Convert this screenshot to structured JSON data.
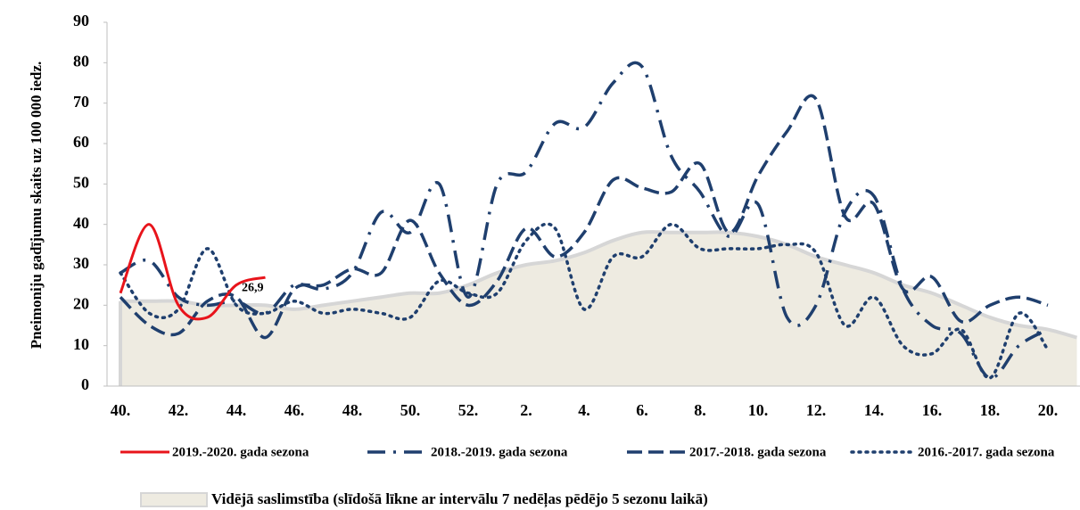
{
  "chart_data": {
    "type": "line",
    "y_label": "Pneimoniju gadījumu skaits uz 100 000 iedz.",
    "categories": [
      "40.",
      null,
      "42.",
      null,
      "44.",
      null,
      "46.",
      null,
      "48.",
      null,
      "50.",
      null,
      "52.",
      null,
      "2.",
      null,
      "4.",
      null,
      "6.",
      null,
      "8.",
      null,
      "10.",
      null,
      "12.",
      null,
      "14.",
      null,
      "16.",
      null,
      "18.",
      null,
      "20.",
      null
    ],
    "ylim": [
      0,
      90
    ],
    "yticks": [
      0,
      10,
      20,
      30,
      40,
      50,
      60,
      70,
      80,
      90
    ],
    "area": {
      "name": "Vidējā saslimstība (slīdošā līkne ar intervālu 7 nedēļas pēdējo 5 sezonu laikā)",
      "color": "#eeebe1",
      "edge": "#d6d6d6",
      "values": [
        21,
        21,
        21,
        20,
        20,
        20,
        19,
        20,
        21,
        22,
        23,
        23,
        25,
        28,
        30,
        31,
        33,
        36,
        38,
        38,
        38,
        38,
        37,
        35,
        32,
        30,
        28,
        25,
        23,
        20,
        17,
        15,
        14,
        12
      ]
    },
    "series": [
      {
        "name": "2019.-2020. gada sezona",
        "color": "#e8141b",
        "style": "solid",
        "values": [
          23,
          40,
          20,
          17,
          25,
          26.9,
          null,
          null,
          null,
          null,
          null,
          null,
          null,
          null,
          null,
          null,
          null,
          null,
          null,
          null,
          null,
          null,
          null,
          null,
          null,
          null,
          null,
          null,
          null,
          null,
          null,
          null,
          null,
          null
        ],
        "value_labels": [
          null,
          null,
          null,
          null,
          null,
          "26,9",
          null,
          null,
          null,
          null,
          null,
          null,
          null,
          null,
          null,
          null,
          null,
          null,
          null,
          null,
          null,
          null,
          null,
          null,
          null,
          null,
          null,
          null,
          null,
          null,
          null,
          null,
          null,
          null
        ]
      },
      {
        "name": "2018.-2019. gada sezona",
        "color": "#1f3f6e",
        "style": "dashdot",
        "values": [
          28,
          31,
          22,
          20,
          21,
          18,
          25,
          24,
          28,
          43,
          38,
          50,
          22,
          50,
          53,
          65,
          64,
          75,
          79,
          57,
          48,
          37,
          45,
          17,
          20,
          43,
          47,
          24,
          15,
          13,
          2,
          10,
          14,
          null
        ]
      },
      {
        "name": "2017.-2018. gada sezona",
        "color": "#1f3f6e",
        "style": "dash",
        "values": [
          22,
          15,
          13,
          21,
          22,
          12,
          24,
          25,
          29,
          28,
          41,
          28,
          20,
          26,
          39,
          32,
          38,
          51,
          49,
          48,
          55,
          38,
          52,
          63,
          71,
          42,
          45,
          24,
          27,
          16,
          20,
          22,
          20,
          null
        ]
      },
      {
        "name": "2016.-2017. gada sezona",
        "color": "#1f3f6e",
        "style": "dot",
        "values": [
          28,
          18,
          19,
          34,
          20,
          18,
          21,
          18,
          19,
          18,
          17,
          26,
          23,
          23,
          36,
          39,
          19,
          32,
          32,
          40,
          34,
          34,
          34,
          35,
          33,
          15,
          22,
          10,
          8,
          14,
          2,
          18,
          9,
          null
        ]
      }
    ]
  }
}
